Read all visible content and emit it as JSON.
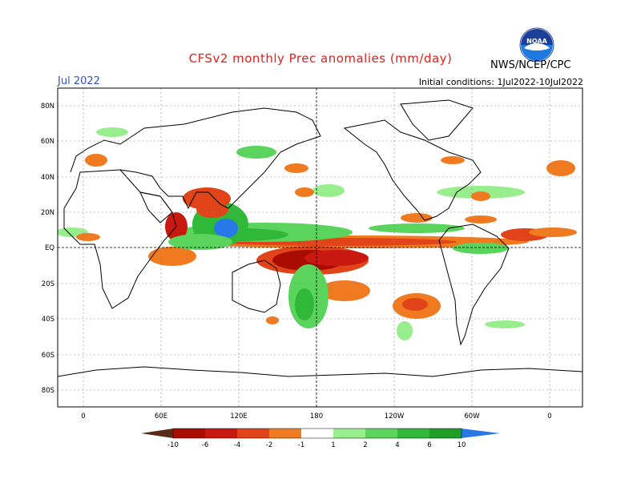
{
  "header": {
    "title": "CFSv2 monthly Prec anomalies (mm/day)",
    "month": "Jul 2022",
    "initial_conditions": "Initial conditions: 1Jul2022-10Jul2022",
    "agency": "NWS/NCEP/CPC",
    "logo_text": "NOAA"
  },
  "map": {
    "lat_labels": [
      "80N",
      "60N",
      "40N",
      "20N",
      "EQ",
      "20S",
      "40S",
      "60S",
      "80S"
    ],
    "lon_labels": [
      "0",
      "60E",
      "120E",
      "180",
      "120W",
      "60W",
      "0"
    ]
  },
  "colorbar": {
    "labels": [
      "-10",
      "-6",
      "-4",
      "-2",
      "-1",
      "1",
      "2",
      "4",
      "6",
      "10"
    ],
    "colors": [
      "#5a2a18",
      "#a80c00",
      "#c81810",
      "#e04418",
      "#f07a20",
      "#f0a018",
      "#ffffff",
      "#98ee8c",
      "#5ad45c",
      "#30b838",
      "#1ea028",
      "#148c1c",
      "#2878e8"
    ]
  }
}
